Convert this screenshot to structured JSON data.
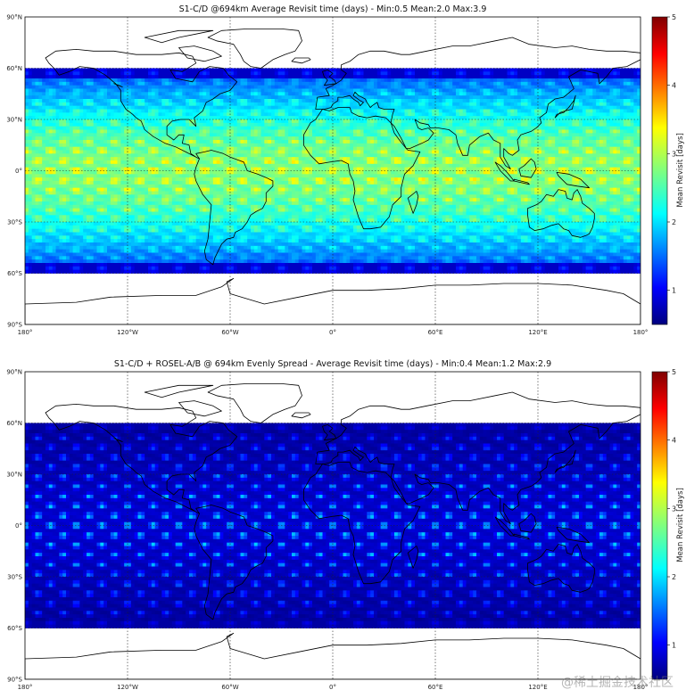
{
  "chart_data": [
    {
      "type": "heatmap",
      "title": "S1-C/D @694km Average Revisit time (days) -  Min:0.5  Mean:2.0  Max:3.9",
      "x_ticks": [
        "180°",
        "120°W",
        "60°W",
        "0°",
        "60°E",
        "120°E",
        "180°"
      ],
      "x_tick_values": [
        -180,
        -120,
        -60,
        0,
        60,
        120,
        180
      ],
      "y_ticks": [
        "90°N",
        "60°N",
        "30°N",
        "0°",
        "30°S",
        "60°S",
        "90°S"
      ],
      "y_tick_values": [
        90,
        60,
        30,
        0,
        -30,
        -60,
        -90
      ],
      "xlim": [
        -180,
        180
      ],
      "ylim": [
        -90,
        90
      ],
      "coverage_lat": [
        -60,
        60
      ],
      "stats": {
        "min": 0.5,
        "mean": 2.0,
        "max": 3.9
      },
      "colorbar": {
        "label": "Mean Revisit [days]",
        "range": [
          0.5,
          5
        ],
        "ticks": [
          "1",
          "2",
          "3",
          "4",
          "5"
        ],
        "tick_values": [
          1,
          2,
          3,
          4,
          5
        ],
        "colormap": "jet"
      },
      "grid": true,
      "pattern_columns": 24
    },
    {
      "type": "heatmap",
      "title": "S1-C/D + ROSEL-A/B @ 694km Evenly Spread - Average Revisit time (days) -  Min:0.4  Mean:1.2  Max:2.9",
      "x_ticks": [
        "180°",
        "120°W",
        "60°W",
        "0°",
        "60°E",
        "120°E",
        "180°"
      ],
      "x_tick_values": [
        -180,
        -120,
        -60,
        0,
        60,
        120,
        180
      ],
      "y_ticks": [
        "90°N",
        "60°N",
        "30°N",
        "0°",
        "30°S",
        "60°S",
        "90°S"
      ],
      "y_tick_values": [
        90,
        60,
        30,
        0,
        -30,
        -60,
        -90
      ],
      "xlim": [
        -180,
        180
      ],
      "ylim": [
        -90,
        90
      ],
      "coverage_lat": [
        -60,
        60
      ],
      "stats": {
        "min": 0.4,
        "mean": 1.2,
        "max": 2.9
      },
      "colorbar": {
        "label": "Mean Revisit [days]",
        "range": [
          0.5,
          5
        ],
        "ticks": [
          "1",
          "2",
          "3",
          "4",
          "5"
        ],
        "tick_values": [
          1,
          2,
          3,
          4,
          5
        ],
        "colormap": "jet"
      },
      "grid": true,
      "pattern_columns": 24
    }
  ],
  "watermark": "@稀土掘金技术社区"
}
